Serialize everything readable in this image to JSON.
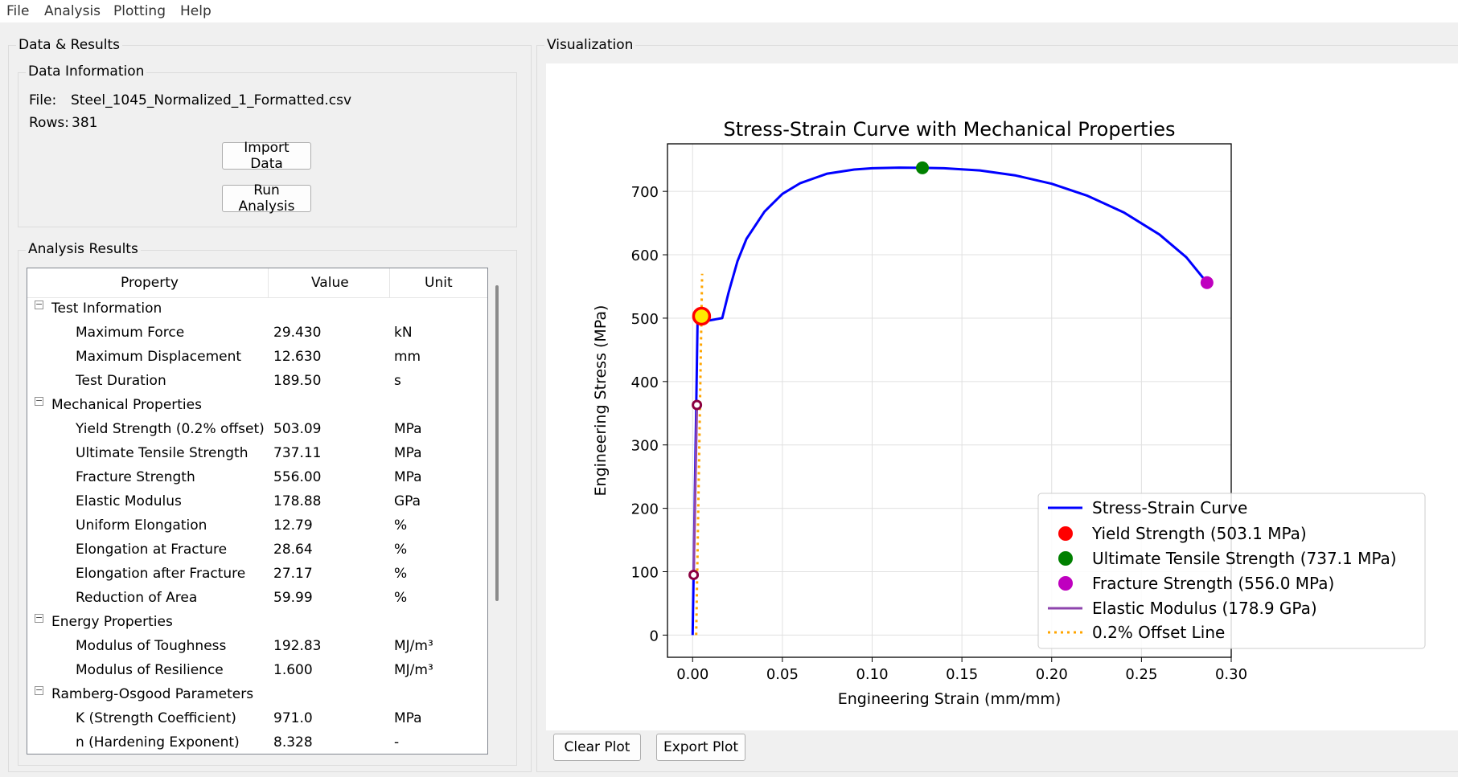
{
  "menu": [
    "File",
    "Analysis",
    "Plotting",
    "Help"
  ],
  "left_panel": {
    "title": "Data & Results",
    "data_info": {
      "title": "Data Information",
      "file_label": "File:",
      "file_name": "Steel_1045_Normalized_1_Formatted.csv",
      "rows_label": "Rows:",
      "rows_value": "381",
      "import_button": "Import Data",
      "run_button": "Run Analysis"
    },
    "results": {
      "title": "Analysis Results",
      "columns": [
        "Property",
        "Value",
        "Unit"
      ],
      "rows": [
        {
          "group": true,
          "label": "Test Information"
        },
        {
          "label": "Maximum Force",
          "value": "29.430",
          "unit": "kN"
        },
        {
          "label": "Maximum Displacement",
          "value": "12.630",
          "unit": "mm"
        },
        {
          "label": "Test Duration",
          "value": "189.50",
          "unit": "s"
        },
        {
          "group": true,
          "label": "Mechanical Properties"
        },
        {
          "label": "Yield Strength (0.2% offset)",
          "value": "503.09",
          "unit": "MPa"
        },
        {
          "label": "Ultimate Tensile Strength",
          "value": "737.11",
          "unit": "MPa"
        },
        {
          "label": "Fracture Strength",
          "value": "556.00",
          "unit": "MPa"
        },
        {
          "label": "Elastic Modulus",
          "value": "178.88",
          "unit": "GPa"
        },
        {
          "label": "Uniform Elongation",
          "value": "12.79",
          "unit": "%"
        },
        {
          "label": "Elongation at Fracture",
          "value": "28.64",
          "unit": "%"
        },
        {
          "label": "Elongation after Fracture",
          "value": "27.17",
          "unit": "%"
        },
        {
          "label": "Reduction of Area",
          "value": "59.99",
          "unit": "%"
        },
        {
          "group": true,
          "label": "Energy Properties"
        },
        {
          "label": "Modulus of Toughness",
          "value": "192.83",
          "unit": "MJ/m³"
        },
        {
          "label": "Modulus of Resilience",
          "value": "1.600",
          "unit": "MJ/m³"
        },
        {
          "group": true,
          "label": "Ramberg-Osgood Parameters"
        },
        {
          "label": "K (Strength Coefficient)",
          "value": "971.0",
          "unit": "MPa"
        },
        {
          "label": "n (Hardening Exponent)",
          "value": "8.328",
          "unit": "-"
        }
      ]
    }
  },
  "right_panel": {
    "title": "Visualization",
    "clear_button": "Clear Plot",
    "export_button": "Export Plot"
  },
  "colors": {
    "curve": "#0000ff",
    "yield": "#ff0000",
    "uts": "#008000",
    "fracture": "#bf00bf",
    "elastic": "#8e44ad",
    "offset": "#ffa500"
  },
  "chart_data": {
    "type": "line",
    "title": "Stress-Strain Curve with Mechanical Properties",
    "xlabel": "Engineering Strain (mm/mm)",
    "ylabel": "Engineering Stress (MPa)",
    "xlim": [
      -0.014,
      0.3
    ],
    "ylim": [
      -35,
      775
    ],
    "xticks": [
      0.0,
      0.05,
      0.1,
      0.15,
      0.2,
      0.25,
      0.3
    ],
    "xtick_labels": [
      "0.00",
      "0.05",
      "0.10",
      "0.15",
      "0.20",
      "0.25",
      "0.30"
    ],
    "yticks": [
      0,
      100,
      200,
      300,
      400,
      500,
      600,
      700
    ],
    "ytick_labels": [
      "0",
      "100",
      "200",
      "300",
      "400",
      "500",
      "600",
      "700"
    ],
    "grid": true,
    "legend_position": "lower-right",
    "legend": [
      "Stress-Strain Curve",
      "Yield Strength (503.1 MPa)",
      "Ultimate Tensile Strength (737.1 MPa)",
      "Fracture Strength (556.0 MPa)",
      "Elastic Modulus (178.9 GPa)",
      "0.2% Offset Line"
    ],
    "stress_strain_curve": {
      "x": [
        0.0,
        0.0028,
        0.0044,
        0.0085,
        0.0165,
        0.02,
        0.025,
        0.03,
        0.04,
        0.05,
        0.06,
        0.075,
        0.09,
        0.1,
        0.1151,
        0.128,
        0.14,
        0.16,
        0.18,
        0.2,
        0.22,
        0.24,
        0.26,
        0.275,
        0.2865
      ],
      "y": [
        0,
        503,
        497,
        496,
        500,
        540,
        590,
        625,
        668,
        696,
        713,
        728,
        734.5,
        736.5,
        737.5,
        737.1,
        736.5,
        733,
        725,
        712,
        693,
        667,
        632,
        596,
        556
      ]
    },
    "yield_point": {
      "x": 0.005,
      "y": 503.1
    },
    "uts_point": {
      "x": 0.128,
      "y": 737.1
    },
    "fracture_point": {
      "x": 0.2865,
      "y": 556.0
    },
    "elastic_fit": {
      "x": [
        0.0006,
        0.0024
      ],
      "y": [
        95,
        363
      ]
    },
    "offset_line": {
      "x": [
        0.002,
        0.0053
      ],
      "y": [
        0,
        570
      ]
    }
  }
}
